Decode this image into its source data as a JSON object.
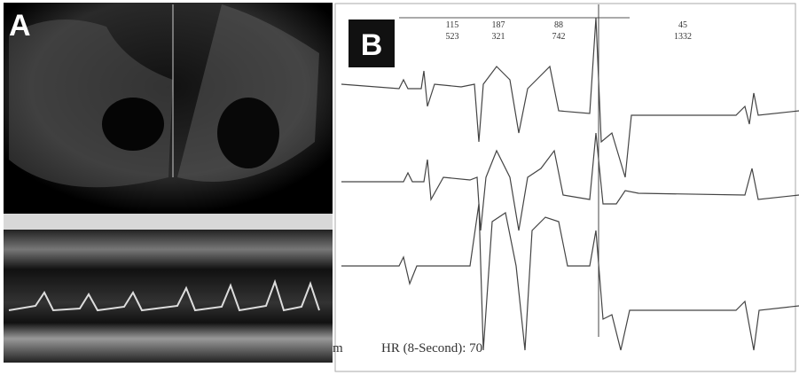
{
  "panels": {
    "a": {
      "label": "A"
    },
    "b": {
      "label": "B"
    }
  },
  "intervals": [
    {
      "top": "115",
      "bottom": "523"
    },
    {
      "top": "187",
      "bottom": "321"
    },
    {
      "top": "88",
      "bottom": "742"
    },
    {
      "top": "45",
      "bottom": "1332"
    }
  ],
  "footer": {
    "fragment": "m",
    "heart_rate": "HR (8-Second): 70"
  }
}
